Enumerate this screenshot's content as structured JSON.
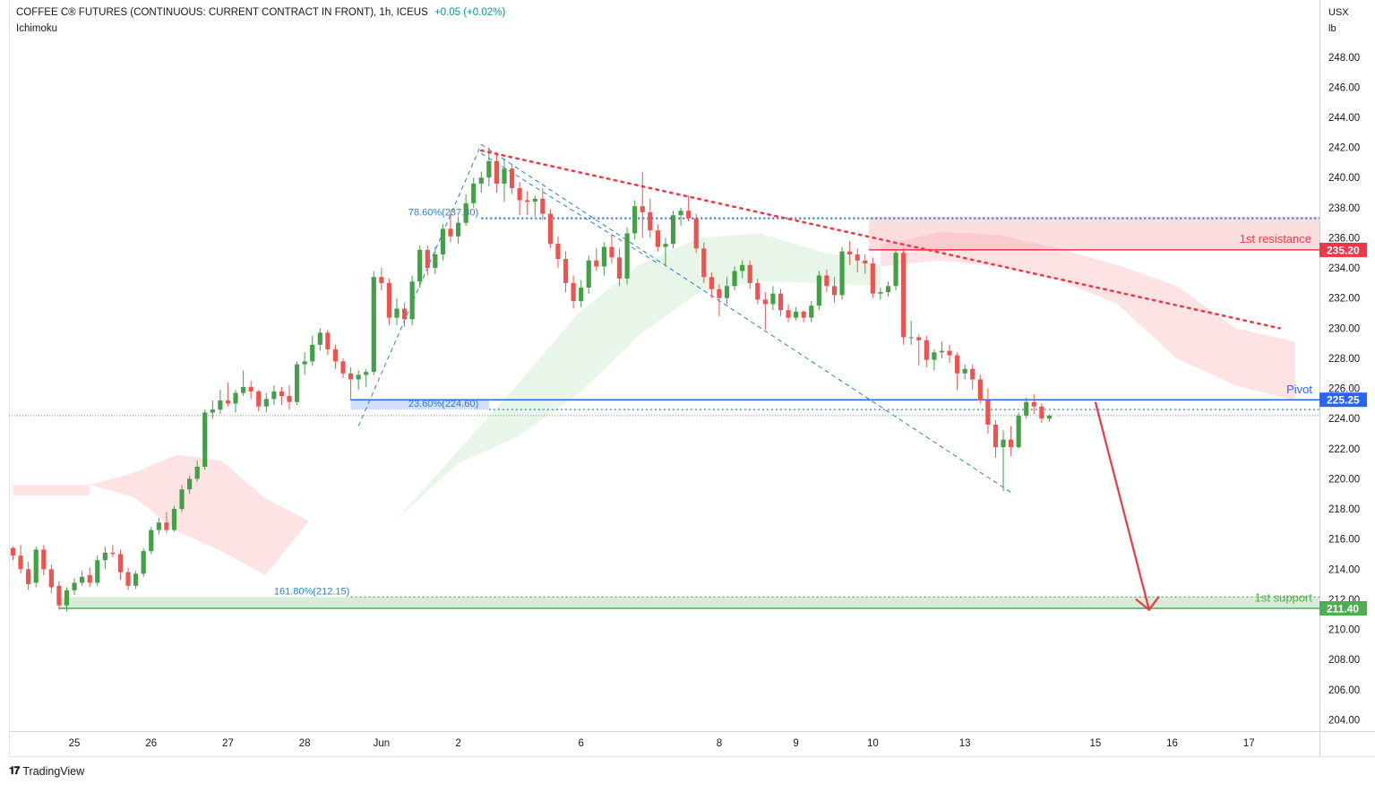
{
  "header": {
    "title": "COFFEE C® FUTURES (CONTINUOUS: CURRENT CONTRACT IN FRONT), 1h, ICEUS",
    "change": "+0.05 (+0.02%)",
    "indicator": "Ichimoku"
  },
  "axis_unit": [
    "USX",
    "lb"
  ],
  "branding": {
    "logo_text": "TradingView",
    "logo_icon": "tradingview-logo-icon"
  },
  "colors": {
    "bull": "#43a047",
    "bear": "#ef5350",
    "resistance": "#f23645",
    "pivot": "#2962ff",
    "support": "#4caf50",
    "fib": "#2a7fd4",
    "cloud_bull": "#e8f5e9",
    "cloud_bear": "#fde3e3"
  },
  "chart_data": {
    "type": "candlestick",
    "symbol": "COFFEE C® FUTURES (CONTINUOUS: CURRENT CONTRACT IN FRONT)",
    "interval": "1h",
    "exchange": "ICEUS",
    "ylim": [
      203,
      252
    ],
    "y_ticks": [
      "204.00",
      "206.00",
      "208.00",
      "210.00",
      "212.00",
      "214.00",
      "216.00",
      "218.00",
      "220.00",
      "222.00",
      "224.00",
      "226.00",
      "228.00",
      "230.00",
      "232.00",
      "234.00",
      "236.00",
      "238.00",
      "240.00",
      "242.00",
      "244.00",
      "246.00",
      "248.00"
    ],
    "x_ticks": [
      {
        "label": "25",
        "t": 8
      },
      {
        "label": "26",
        "t": 18
      },
      {
        "label": "27",
        "t": 28
      },
      {
        "label": "28",
        "t": 38
      },
      {
        "label": "Jun",
        "t": 48
      },
      {
        "label": "2",
        "t": 58
      },
      {
        "label": "6",
        "t": 74
      },
      {
        "label": "8",
        "t": 92
      },
      {
        "label": "9",
        "t": 102
      },
      {
        "label": "10",
        "t": 112
      },
      {
        "label": "13",
        "t": 124
      },
      {
        "label": "15",
        "t": 141
      },
      {
        "label": "16",
        "t": 151
      },
      {
        "label": "17",
        "t": 161
      }
    ],
    "candles": [
      [
        215.4,
        215.5,
        214.6,
        214.9
      ],
      [
        214.9,
        215.6,
        213.7,
        214.0
      ],
      [
        214.0,
        214.5,
        212.6,
        213.0
      ],
      [
        213.1,
        215.5,
        212.8,
        215.3
      ],
      [
        215.3,
        215.6,
        213.6,
        214.0
      ],
      [
        214.0,
        214.3,
        212.4,
        212.8
      ],
      [
        212.9,
        213.2,
        211.3,
        211.6
      ],
      [
        211.6,
        212.8,
        211.2,
        212.6
      ],
      [
        212.6,
        213.4,
        212.3,
        213.1
      ],
      [
        213.1,
        213.9,
        212.9,
        213.5
      ],
      [
        213.6,
        214.1,
        212.8,
        213.1
      ],
      [
        213.1,
        214.9,
        212.9,
        214.6
      ],
      [
        214.6,
        215.5,
        214.0,
        215.1
      ],
      [
        215.1,
        215.6,
        214.8,
        215.0
      ],
      [
        215.0,
        215.3,
        213.3,
        213.8
      ],
      [
        213.8,
        214.1,
        212.6,
        212.9
      ],
      [
        212.9,
        213.9,
        212.7,
        213.7
      ],
      [
        213.7,
        215.4,
        213.5,
        215.2
      ],
      [
        215.2,
        216.8,
        215.0,
        216.6
      ],
      [
        216.6,
        217.4,
        216.3,
        217.1
      ],
      [
        217.1,
        217.8,
        216.4,
        216.6
      ],
      [
        216.6,
        218.2,
        216.5,
        218.0
      ],
      [
        218.0,
        219.6,
        217.8,
        219.3
      ],
      [
        219.3,
        220.2,
        219.0,
        220.0
      ],
      [
        220.0,
        221.2,
        219.8,
        220.8
      ],
      [
        220.8,
        224.6,
        220.6,
        224.4
      ],
      [
        224.4,
        225.2,
        224.0,
        224.6
      ],
      [
        224.6,
        225.9,
        224.3,
        225.2
      ],
      [
        225.2,
        226.4,
        224.8,
        225.0
      ],
      [
        225.0,
        225.9,
        224.4,
        225.7
      ],
      [
        225.7,
        227.2,
        225.5,
        226.1
      ],
      [
        226.1,
        226.5,
        225.3,
        225.8
      ],
      [
        225.8,
        225.9,
        224.5,
        224.8
      ],
      [
        224.8,
        225.7,
        224.4,
        225.3
      ],
      [
        225.3,
        226.2,
        224.9,
        225.8
      ],
      [
        225.8,
        226.1,
        224.9,
        225.5
      ],
      [
        225.5,
        226.2,
        224.6,
        225.1
      ],
      [
        225.1,
        227.8,
        224.9,
        227.6
      ],
      [
        227.6,
        228.4,
        226.9,
        227.8
      ],
      [
        227.8,
        229.5,
        227.5,
        228.9
      ],
      [
        228.9,
        230.0,
        228.5,
        229.7
      ],
      [
        229.7,
        229.9,
        228.2,
        228.6
      ],
      [
        228.6,
        228.9,
        227.3,
        227.8
      ],
      [
        227.8,
        228.0,
        226.7,
        227.0
      ],
      [
        227.0,
        227.4,
        225.2,
        226.6
      ],
      [
        226.6,
        227.2,
        225.9,
        226.9
      ],
      [
        226.9,
        227.3,
        226.1,
        227.1
      ],
      [
        227.1,
        233.8,
        226.9,
        233.4
      ],
      [
        233.4,
        234.0,
        232.5,
        233.0
      ],
      [
        233.0,
        233.3,
        230.2,
        230.7
      ],
      [
        230.7,
        232.0,
        230.2,
        231.3
      ],
      [
        231.3,
        231.7,
        230.1,
        230.6
      ],
      [
        230.6,
        233.5,
        230.2,
        233.1
      ],
      [
        233.1,
        235.5,
        232.7,
        235.2
      ],
      [
        235.2,
        235.5,
        233.5,
        234.0
      ],
      [
        234.0,
        235.4,
        233.6,
        234.9
      ],
      [
        234.9,
        236.9,
        234.5,
        236.6
      ],
      [
        236.6,
        237.8,
        235.7,
        236.1
      ],
      [
        236.1,
        237.4,
        235.6,
        237.0
      ],
      [
        237.0,
        238.9,
        236.8,
        238.3
      ],
      [
        238.3,
        240.0,
        238.0,
        239.6
      ],
      [
        239.6,
        240.4,
        239.0,
        240.0
      ],
      [
        240.0,
        242.0,
        239.4,
        241.1
      ],
      [
        241.1,
        241.7,
        239.0,
        239.6
      ],
      [
        239.6,
        241.3,
        238.4,
        240.6
      ],
      [
        240.6,
        240.9,
        238.9,
        239.3
      ],
      [
        239.3,
        239.7,
        237.5,
        238.5
      ],
      [
        238.5,
        239.1,
        237.5,
        238.4
      ],
      [
        238.4,
        238.8,
        237.4,
        238.6
      ],
      [
        238.6,
        239.3,
        237.2,
        237.6
      ],
      [
        237.6,
        237.9,
        235.3,
        235.6
      ],
      [
        235.6,
        236.1,
        234.0,
        234.6
      ],
      [
        234.6,
        235.1,
        232.4,
        233.0
      ],
      [
        233.0,
        233.5,
        231.3,
        231.8
      ],
      [
        231.8,
        233.2,
        231.4,
        232.7
      ],
      [
        232.7,
        234.8,
        232.3,
        234.5
      ],
      [
        234.5,
        235.3,
        233.8,
        234.1
      ],
      [
        234.1,
        235.7,
        233.5,
        235.4
      ],
      [
        235.4,
        236.2,
        234.3,
        234.7
      ],
      [
        234.7,
        235.3,
        232.8,
        233.3
      ],
      [
        233.3,
        236.7,
        232.9,
        236.3
      ],
      [
        236.3,
        238.5,
        235.9,
        238.1
      ],
      [
        238.1,
        240.4,
        236.0,
        237.7
      ],
      [
        237.7,
        238.6,
        236.0,
        236.5
      ],
      [
        236.5,
        236.9,
        235.1,
        235.4
      ],
      [
        235.4,
        236.0,
        234.1,
        235.6
      ],
      [
        235.6,
        237.8,
        235.3,
        237.5
      ],
      [
        237.5,
        238.0,
        236.8,
        237.8
      ],
      [
        237.8,
        238.8,
        237.1,
        237.3
      ],
      [
        237.3,
        237.6,
        235.0,
        235.3
      ],
      [
        235.3,
        235.7,
        233.0,
        233.4
      ],
      [
        233.4,
        233.7,
        232.0,
        232.6
      ],
      [
        232.6,
        232.9,
        230.8,
        232.0
      ],
      [
        232.0,
        233.4,
        231.6,
        232.8
      ],
      [
        232.8,
        234.1,
        232.5,
        233.8
      ],
      [
        233.8,
        234.5,
        233.3,
        234.2
      ],
      [
        234.2,
        234.5,
        232.6,
        233.0
      ],
      [
        233.0,
        233.3,
        231.6,
        231.9
      ],
      [
        231.9,
        232.4,
        229.9,
        231.6
      ],
      [
        231.6,
        232.8,
        231.2,
        232.3
      ],
      [
        232.3,
        232.6,
        230.8,
        231.2
      ],
      [
        231.2,
        231.6,
        230.4,
        230.7
      ],
      [
        230.7,
        231.4,
        230.5,
        231.1
      ],
      [
        231.1,
        231.2,
        230.4,
        230.7
      ],
      [
        230.7,
        231.8,
        230.4,
        231.5
      ],
      [
        231.5,
        233.8,
        231.2,
        233.5
      ],
      [
        233.5,
        233.9,
        232.4,
        232.8
      ],
      [
        232.8,
        233.4,
        231.7,
        232.2
      ],
      [
        232.2,
        235.4,
        231.9,
        235.1
      ],
      [
        235.1,
        235.8,
        234.2,
        234.9
      ],
      [
        234.9,
        235.3,
        233.7,
        234.5
      ],
      [
        234.5,
        234.9,
        233.6,
        234.3
      ],
      [
        234.3,
        234.7,
        232.0,
        232.3
      ],
      [
        232.3,
        232.7,
        231.9,
        232.4
      ],
      [
        232.4,
        233.1,
        232.1,
        232.8
      ],
      [
        232.8,
        235.2,
        232.5,
        235.0
      ],
      [
        235.0,
        235.3,
        228.9,
        229.4
      ],
      [
        229.4,
        230.5,
        228.9,
        229.4
      ],
      [
        229.4,
        229.6,
        227.5,
        229.2
      ],
      [
        229.2,
        229.5,
        227.4,
        227.9
      ],
      [
        227.9,
        228.6,
        227.2,
        228.4
      ],
      [
        228.4,
        229.1,
        228.0,
        228.5
      ],
      [
        228.5,
        228.9,
        227.7,
        228.2
      ],
      [
        228.2,
        228.4,
        225.9,
        227.0
      ],
      [
        227.0,
        227.6,
        226.6,
        227.3
      ],
      [
        227.3,
        227.6,
        225.9,
        226.6
      ],
      [
        226.6,
        226.9,
        225.0,
        225.2
      ],
      [
        225.2,
        226.0,
        223.0,
        223.6
      ],
      [
        223.6,
        223.9,
        221.4,
        222.1
      ],
      [
        222.1,
        223.2,
        219.2,
        222.6
      ],
      [
        222.6,
        223.5,
        221.5,
        222.1
      ],
      [
        222.1,
        224.4,
        222.0,
        224.2
      ],
      [
        224.2,
        225.4,
        224.0,
        225.1
      ],
      [
        225.1,
        225.6,
        224.3,
        224.8
      ],
      [
        224.8,
        225.0,
        223.7,
        224.0
      ],
      [
        224.0,
        224.3,
        223.8,
        224.2
      ]
    ],
    "ichimoku_cloud": {
      "bear": [
        {
          "t": [
            0,
            10
          ],
          "top": 219.6,
          "bottom": 218.9
        },
        {
          "t": [
            10,
            50
          ],
          "upper": [
            219.6,
            220.4,
            221.6,
            221.2,
            218.7,
            217.2,
            217.2,
            218.8
          ],
          "lower": [
            219.6,
            218.8,
            216.5,
            215.2,
            213.6,
            217.2,
            217.2,
            218.8
          ]
        },
        {
          "t": [
            113,
            167
          ],
          "upper": [
            235.5,
            236.4,
            236.2,
            235.3,
            234.2,
            232.8,
            230.0,
            229.1
          ],
          "lower": [
            234.1,
            234.5,
            234.1,
            233.2,
            231.6,
            228.0,
            226.2,
            225.2
          ]
        }
      ],
      "bull": [
        {
          "t": [
            50,
            113
          ],
          "upper": [
            217.3,
            221.8,
            226.3,
            231.0,
            234.2,
            236.0,
            236.3,
            235.1,
            234.2
          ],
          "lower": [
            217.3,
            221.0,
            222.8,
            225.6,
            229.5,
            232.4,
            233.1,
            233.0,
            232.8
          ]
        }
      ]
    },
    "fib_labels": [
      {
        "text": "78.60%(237.30)",
        "value": 237.3
      },
      {
        "text": "23.60%(224.60)",
        "value": 224.6
      },
      {
        "text": "161.80%(212.15)",
        "value": 212.15
      }
    ],
    "levels": [
      {
        "name": "1st resistance",
        "value": 235.2,
        "label": "235.20",
        "zone": [
          235.2,
          237.4
        ]
      },
      {
        "name": "Pivot",
        "value": 225.25,
        "label": "225.25",
        "zone": [
          224.6,
          225.25
        ]
      },
      {
        "name": "1st support",
        "value": 211.4,
        "label": "211.40",
        "zone": [
          211.4,
          212.15
        ]
      }
    ],
    "current_price": 224.2,
    "trendline": {
      "from": [
        61,
        241.8
      ],
      "to": [
        165,
        230.0
      ]
    },
    "projection": {
      "from": [
        141,
        225.1
      ],
      "to": [
        148,
        211.3
      ]
    }
  }
}
